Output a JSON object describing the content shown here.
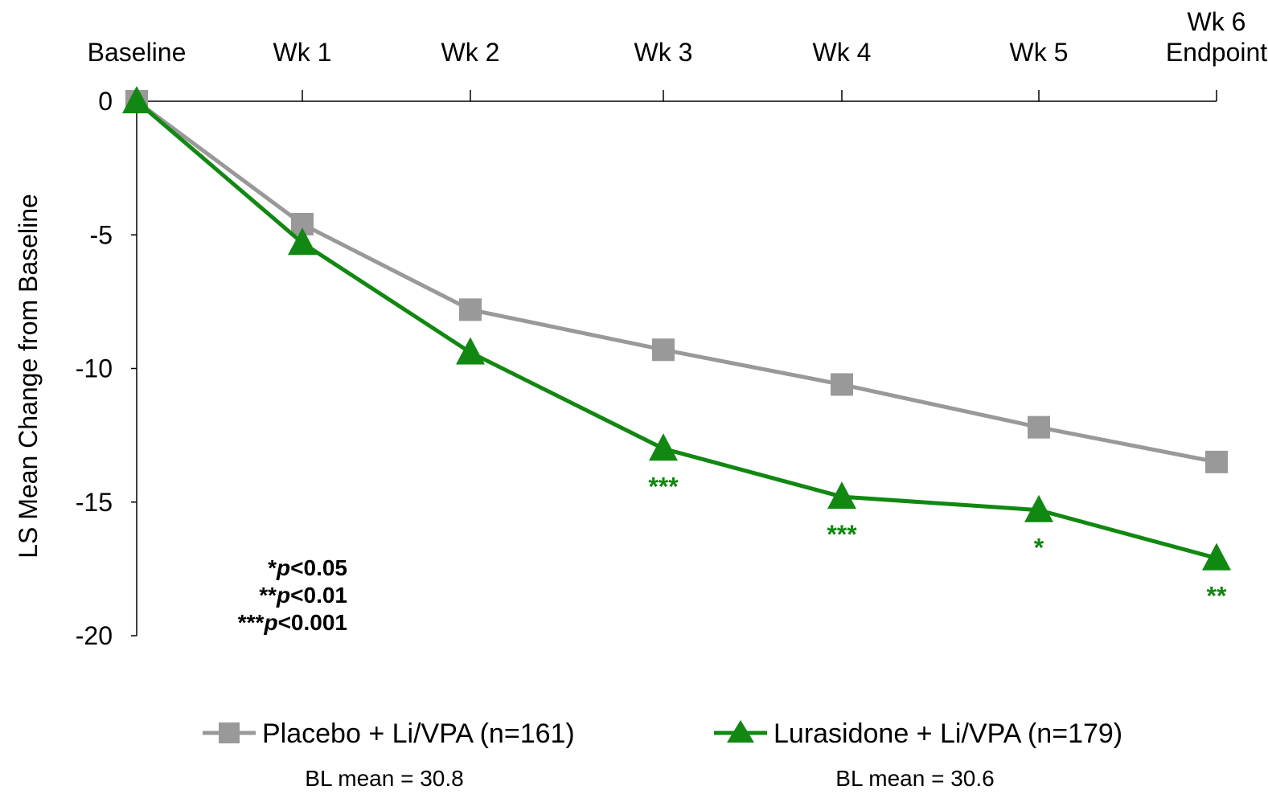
{
  "chart_data": {
    "type": "line",
    "ylabel": "LS Mean Change from Baseline",
    "ylim": [
      -20,
      0
    ],
    "yticks": [
      "0",
      "-5",
      "-10",
      "-15",
      "-20"
    ],
    "ytick_values": [
      0,
      -5,
      -10,
      -15,
      -20
    ],
    "categories": [
      "Baseline",
      "Wk 1",
      "Wk 2",
      "Wk 3",
      "Wk 4",
      "Wk 5",
      "Wk 6\nEndpoint"
    ],
    "category_lines": [
      [
        "Baseline"
      ],
      [
        "Wk 1"
      ],
      [
        "Wk 2"
      ],
      [
        "Wk 3"
      ],
      [
        "Wk 4"
      ],
      [
        "Wk 5"
      ],
      [
        "Wk 6",
        "Endpoint"
      ]
    ],
    "series": [
      {
        "name": "Placebo + Li/VPA (n=161)",
        "color": "#999999",
        "marker": "square",
        "values": [
          0,
          -4.6,
          -7.8,
          -9.3,
          -10.6,
          -12.2,
          -13.5
        ]
      },
      {
        "name": "Lurasidone + Li/VPA (n=179)",
        "color": "#118811",
        "marker": "triangle",
        "values": [
          0,
          -5.3,
          -9.4,
          -13.0,
          -14.8,
          -15.3,
          -17.1
        ],
        "significance": [
          "",
          "",
          "",
          "***",
          "***",
          "*",
          "**"
        ]
      }
    ],
    "baseline_means": [
      "BL mean = 30.8",
      "BL mean = 30.6"
    ],
    "pvalue_key": [
      {
        "stars": "*",
        "text": "p<0.05"
      },
      {
        "stars": "**",
        "text": "p<0.01"
      },
      {
        "stars": "***",
        "text": "p<0.001"
      }
    ],
    "legend_position": "bottom",
    "grid": false
  }
}
